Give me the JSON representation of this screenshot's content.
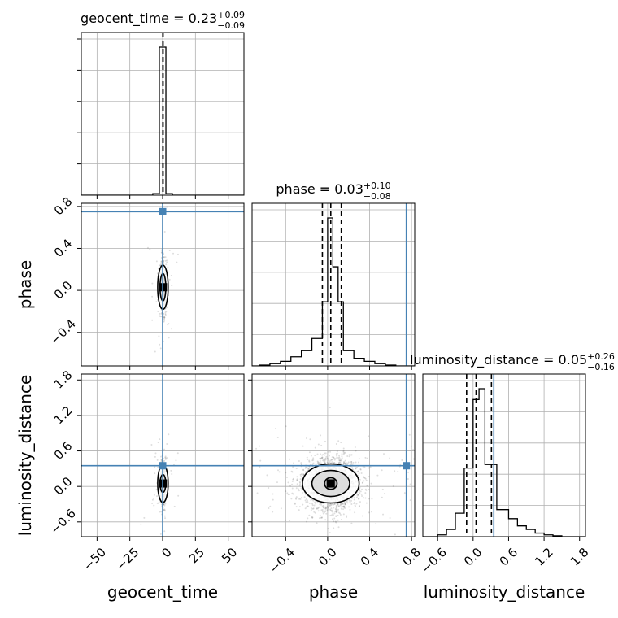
{
  "parameters": [
    "geocent_time",
    "phase",
    "luminosity_distance"
  ],
  "truth_color": "#4682b4",
  "titles": {
    "geocent_time": {
      "label": "geocent_time = ",
      "median": "0.23",
      "plus": "+0.09",
      "minus": "−0.09"
    },
    "phase": {
      "label": "phase = ",
      "median": "0.03",
      "plus": "+0.10",
      "minus": "−0.08"
    },
    "luminosity_distance": {
      "label": "luminosity_distance = ",
      "median": "0.05",
      "plus": "+0.26",
      "minus": "−0.16"
    }
  },
  "axis_labels": {
    "x": [
      "geocent_time",
      "phase",
      "luminosity_distance"
    ],
    "y": [
      "phase",
      "luminosity_distance"
    ]
  },
  "chart_data": {
    "type": "corner",
    "parameters": [
      "geocent_time",
      "phase",
      "luminosity_distance"
    ],
    "ranges": {
      "geocent_time": [
        -62,
        62
      ],
      "phase": [
        -0.72,
        0.83
      ],
      "luminosity_distance": [
        -0.85,
        1.9
      ]
    },
    "ticks": {
      "geocent_time": {
        "values": [
          -50,
          -25,
          0,
          25,
          50
        ],
        "labels": [
          "−50",
          "−25",
          "0",
          "25",
          "50"
        ]
      },
      "phase": {
        "values": [
          -0.4,
          0.0,
          0.4,
          0.8
        ],
        "labels": [
          "−0.4",
          "0.0",
          "0.4",
          "0.8"
        ]
      },
      "luminosity_distance": {
        "values": [
          -0.6,
          0.0,
          0.6,
          1.2,
          1.8
        ],
        "labels": [
          "−0.6",
          "0.0",
          "0.6",
          "1.2",
          "1.8"
        ]
      }
    },
    "truths": {
      "geocent_time": 0.0,
      "phase": 0.75,
      "luminosity_distance": 0.35
    },
    "quantiles": {
      "geocent_time": [
        0.14,
        0.23,
        0.32
      ],
      "phase": [
        -0.05,
        0.03,
        0.13
      ],
      "luminosity_distance": [
        -0.11,
        0.05,
        0.31
      ]
    },
    "histograms": {
      "geocent_time": {
        "bin_edges": [
          -62,
          -7.5,
          -2.5,
          2.5,
          7.5,
          62
        ],
        "counts": [
          0,
          1,
          98,
          1,
          0
        ]
      },
      "phase": {
        "bin_edges": [
          -0.72,
          -0.65,
          -0.55,
          -0.45,
          -0.35,
          -0.25,
          -0.15,
          -0.05,
          0.0,
          0.05,
          0.1,
          0.15,
          0.25,
          0.35,
          0.45,
          0.55,
          0.65,
          0.75,
          0.83
        ],
        "counts": [
          0,
          0.5,
          1.5,
          3,
          6,
          10,
          18,
          42,
          97,
          65,
          42,
          10,
          5,
          3,
          1.5,
          0.5,
          0,
          0
        ]
      },
      "luminosity_distance": {
        "bin_edges": [
          -0.85,
          -0.6,
          -0.45,
          -0.3,
          -0.15,
          0.0,
          0.1,
          0.2,
          0.4,
          0.6,
          0.75,
          0.9,
          1.05,
          1.2,
          1.35,
          1.5,
          1.9
        ],
        "counts": [
          0,
          1,
          4,
          13,
          38,
          76,
          82,
          40,
          15,
          10,
          6,
          4,
          2,
          1,
          0.5,
          0
        ]
      }
    },
    "pairs": [
      {
        "x": "geocent_time",
        "y": "phase",
        "center": [
          0.23,
          0.03
        ],
        "spread": [
          1.2,
          0.12
        ],
        "contour_radii": [
          [
            2.2,
            0.13
          ],
          [
            4,
            0.21
          ]
        ]
      },
      {
        "x": "geocent_time",
        "y": "luminosity_distance",
        "center": [
          0.23,
          0.05
        ],
        "spread": [
          1.2,
          0.18
        ],
        "contour_radii": [
          [
            2.2,
            0.15
          ],
          [
            4,
            0.32
          ]
        ]
      },
      {
        "x": "phase",
        "y": "luminosity_distance",
        "center": [
          0.03,
          0.05
        ],
        "spread": [
          0.13,
          0.22
        ],
        "contour_radii": [
          [
            0.06,
            0.1
          ],
          [
            0.18,
            0.22
          ],
          [
            0.27,
            0.33
          ]
        ]
      }
    ]
  }
}
